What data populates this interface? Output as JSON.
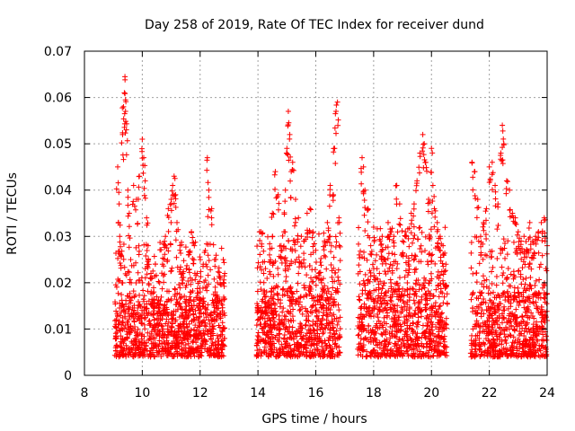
{
  "chart_data": {
    "type": "scatter",
    "title": "Day 258 of 2019, Rate Of TEC Index for receiver dund",
    "xlabel": "GPS time / hours",
    "ylabel": "ROTI / TECUs",
    "xlim": [
      8,
      24
    ],
    "ylim": [
      0,
      0.07
    ],
    "x_ticks": [
      8,
      10,
      12,
      14,
      16,
      18,
      20,
      22,
      24
    ],
    "y_ticks": [
      0,
      0.01,
      0.02,
      0.03,
      0.04,
      0.05,
      0.06,
      0.07
    ],
    "x_tick_labels": [
      "8",
      "10",
      "12",
      "14",
      "16",
      "18",
      "20",
      "22",
      "24"
    ],
    "y_tick_labels": [
      "0",
      "0.01",
      "0.02",
      "0.03",
      "0.04",
      "0.05",
      "0.06",
      "0.07"
    ],
    "grid": true,
    "marker": "+",
    "color": "#ff0000",
    "series": [
      {
        "name": "ROTI",
        "x": [
          9.1,
          9.15,
          9.2,
          9.22,
          9.25,
          9.3,
          9.32,
          9.35,
          9.38,
          9.4,
          9.42,
          9.45,
          9.5,
          9.55,
          9.6,
          9.7,
          9.8,
          9.9,
          10.0,
          10.05,
          10.1,
          10.15,
          10.2,
          10.3,
          10.4,
          10.5,
          10.6,
          10.7,
          10.8,
          10.9,
          11.0,
          11.05,
          11.1,
          11.15,
          11.2,
          11.3,
          11.4,
          11.5,
          11.6,
          11.7,
          11.8,
          11.9,
          12.0,
          12.1,
          12.2,
          12.25,
          12.3,
          12.4,
          12.5,
          12.6,
          12.7,
          12.8,
          12.85,
          14.0,
          14.1,
          14.2,
          14.3,
          14.4,
          14.5,
          14.6,
          14.7,
          14.8,
          14.9,
          14.95,
          15.0,
          15.05,
          15.1,
          15.15,
          15.2,
          15.3,
          15.4,
          15.5,
          15.6,
          15.7,
          15.8,
          15.9,
          16.0,
          16.1,
          16.2,
          16.3,
          16.4,
          16.5,
          16.6,
          16.65,
          16.7,
          16.75,
          16.8,
          17.5,
          17.6,
          17.65,
          17.7,
          17.8,
          17.9,
          18.0,
          18.1,
          18.2,
          18.3,
          18.4,
          18.5,
          18.6,
          18.7,
          18.8,
          18.9,
          19.0,
          19.1,
          19.2,
          19.3,
          19.4,
          19.5,
          19.6,
          19.7,
          19.75,
          19.8,
          19.9,
          20.0,
          20.05,
          20.1,
          20.2,
          20.3,
          20.4,
          20.5,
          21.4,
          21.5,
          21.6,
          21.7,
          21.8,
          21.9,
          22.0,
          22.1,
          22.2,
          22.3,
          22.4,
          22.45,
          22.5,
          22.6,
          22.7,
          22.8,
          22.9,
          23.0,
          23.1,
          23.2,
          23.3,
          23.4,
          23.5,
          23.6,
          23.7,
          23.8,
          23.9,
          24.0
        ],
        "y": [
          0.012,
          0.045,
          0.037,
          0.03,
          0.026,
          0.02,
          0.052,
          0.058,
          0.061,
          0.0645,
          0.057,
          0.053,
          0.04,
          0.035,
          0.025,
          0.041,
          0.038,
          0.043,
          0.051,
          0.047,
          0.042,
          0.034,
          0.028,
          0.022,
          0.018,
          0.015,
          0.02,
          0.024,
          0.03,
          0.036,
          0.038,
          0.041,
          0.043,
          0.039,
          0.033,
          0.027,
          0.022,
          0.019,
          0.026,
          0.031,
          0.028,
          0.022,
          0.018,
          0.016,
          0.024,
          0.047,
          0.04,
          0.036,
          0.025,
          0.02,
          0.021,
          0.025,
          0.022,
          0.015,
          0.031,
          0.022,
          0.018,
          0.026,
          0.035,
          0.044,
          0.039,
          0.028,
          0.031,
          0.04,
          0.049,
          0.057,
          0.052,
          0.044,
          0.046,
          0.038,
          0.034,
          0.03,
          0.029,
          0.035,
          0.036,
          0.031,
          0.027,
          0.022,
          0.02,
          0.029,
          0.033,
          0.041,
          0.039,
          0.049,
          0.057,
          0.059,
          0.034,
          0.026,
          0.047,
          0.045,
          0.04,
          0.036,
          0.028,
          0.032,
          0.026,
          0.022,
          0.027,
          0.025,
          0.033,
          0.031,
          0.03,
          0.041,
          0.037,
          0.029,
          0.031,
          0.024,
          0.035,
          0.037,
          0.042,
          0.048,
          0.052,
          0.05,
          0.046,
          0.038,
          0.049,
          0.041,
          0.036,
          0.033,
          0.03,
          0.028,
          0.024,
          0.046,
          0.044,
          0.038,
          0.03,
          0.033,
          0.036,
          0.045,
          0.046,
          0.041,
          0.037,
          0.048,
          0.054,
          0.05,
          0.042,
          0.04,
          0.035,
          0.034,
          0.031,
          0.029,
          0.03,
          0.027,
          0.033,
          0.029,
          0.03,
          0.031,
          0.033,
          0.034,
          0.028
        ]
      }
    ],
    "background_segments": [
      {
        "start": 9.05,
        "end": 12.85,
        "low": 0.004,
        "high": 0.017
      },
      {
        "start": 13.95,
        "end": 16.85,
        "low": 0.004,
        "high": 0.019
      },
      {
        "start": 17.45,
        "end": 20.55,
        "low": 0.004,
        "high": 0.02
      },
      {
        "start": 21.35,
        "end": 24.0,
        "low": 0.004,
        "high": 0.018
      }
    ]
  }
}
